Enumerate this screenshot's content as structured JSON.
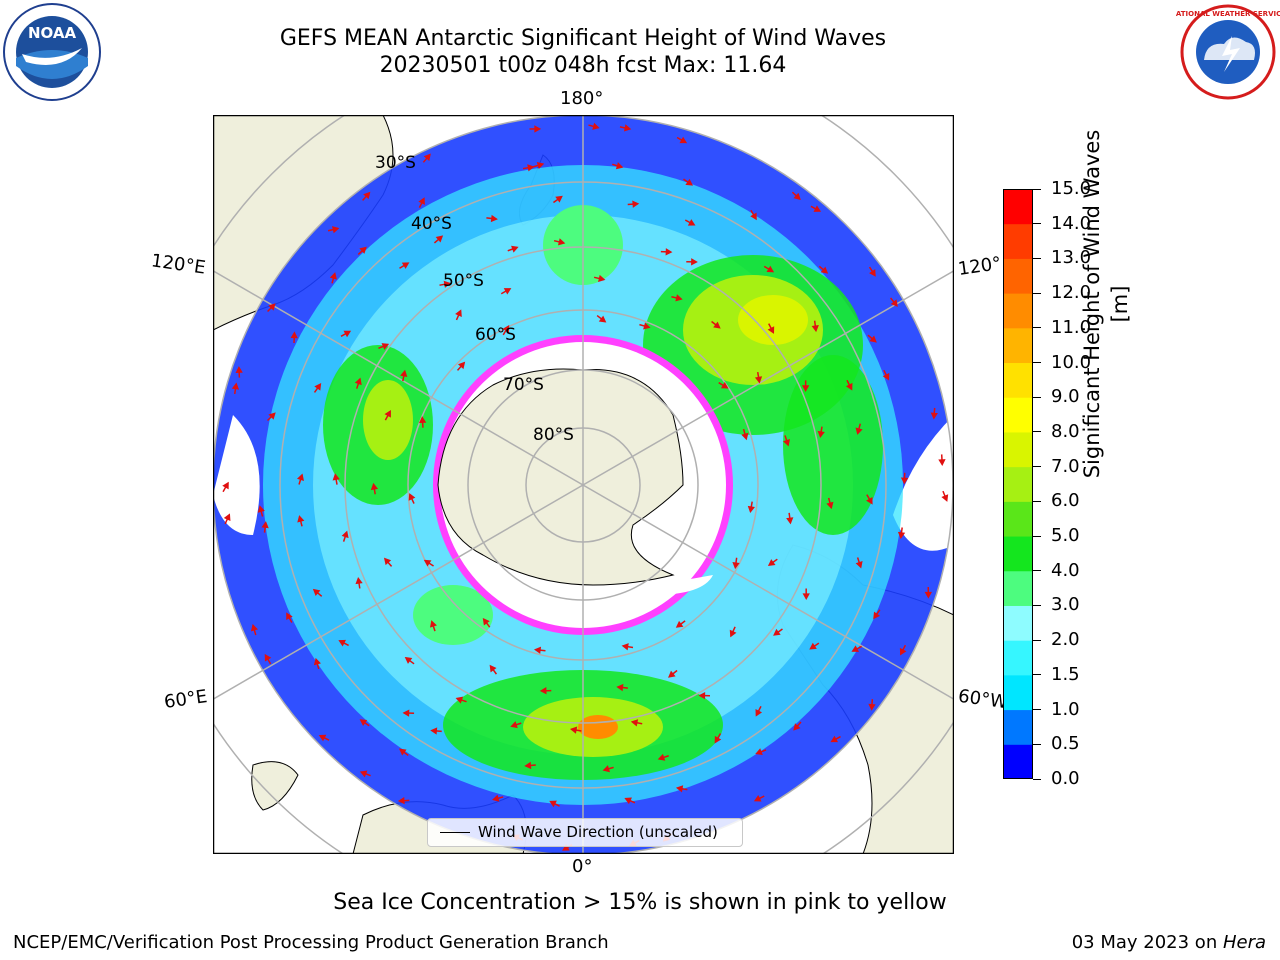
{
  "title": {
    "line1": "GEFS MEAN Antarctic Significant Height of Wind Waves",
    "line2": "20230501 t00z 048h fcst   Max: 11.64"
  },
  "logos": {
    "left": "noaa-logo",
    "left_text": "NOAA",
    "right": "nws-logo",
    "right_text": "NATIONAL WEATHER SERVICE"
  },
  "map": {
    "projection": "south-polar-stereographic",
    "lat_labels": [
      "30°S",
      "40°S",
      "50°S",
      "60°S",
      "70°S",
      "80°S"
    ],
    "lon_labels": {
      "top": "180°",
      "bottom": "0°",
      "left_upper": "120°E",
      "left_lower": "60°E",
      "right_upper": "120°",
      "right_lower": "60°W"
    },
    "legend_label": "Wind Wave Direction (unscaled)"
  },
  "colorbar": {
    "label": "Significant Height of Wind Waves [m]",
    "ticks": [
      "0.0",
      "0.5",
      "1.0",
      "1.5",
      "2.0",
      "3.0",
      "4.0",
      "5.0",
      "6.0",
      "7.0",
      "8.0",
      "9.0",
      "10.0",
      "11.0",
      "12.0",
      "13.0",
      "14.0",
      "15.0"
    ],
    "colors": [
      "#0000ff",
      "#0078ff",
      "#00e6ff",
      "#36f6ff",
      "#8efcff",
      "#4dfc7f",
      "#14e61e",
      "#5ae619",
      "#a6f013",
      "#d9f500",
      "#ffff00",
      "#ffe100",
      "#ffb400",
      "#ff8c00",
      "#ff6400",
      "#ff3c00",
      "#ff0000"
    ]
  },
  "footer": {
    "note": "Sea Ice Concentration > 15% is shown in pink to yellow",
    "left": "NCEP/EMC/Verification Post Processing Product Generation Branch",
    "date": "03 May 2023 on ",
    "host": "Hera"
  }
}
